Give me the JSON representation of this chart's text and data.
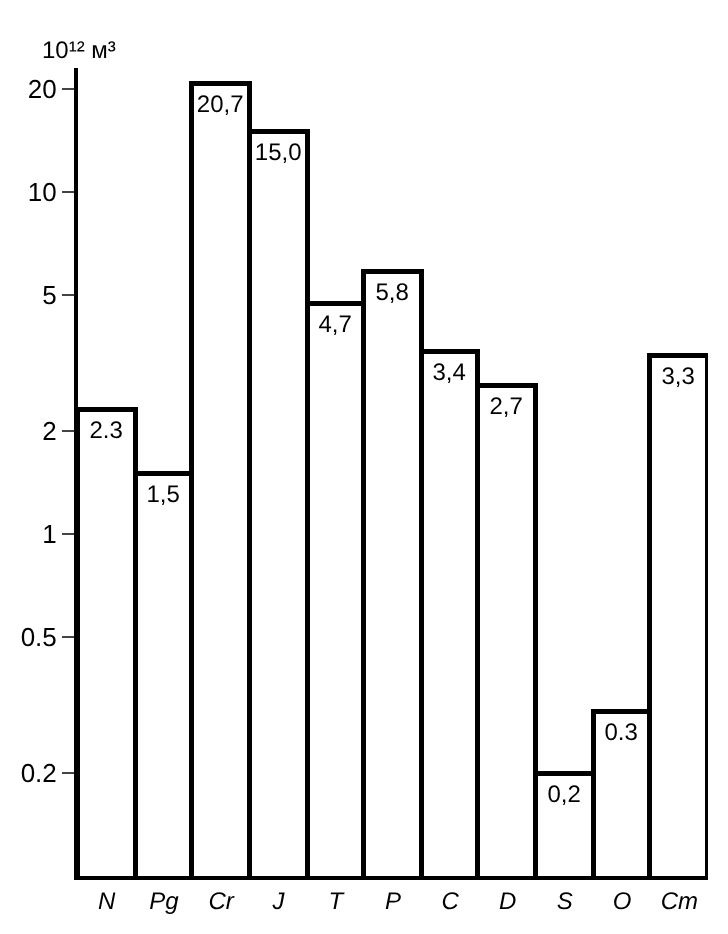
{
  "chart_data": {
    "type": "bar",
    "ylabel": "10¹² м³",
    "categories": [
      "N",
      "Pg",
      "Cr",
      "J",
      "T",
      "P",
      "C",
      "D",
      "S",
      "O",
      "Cm"
    ],
    "values": [
      2.3,
      1.5,
      20.7,
      15.0,
      4.7,
      5.8,
      3.4,
      2.7,
      0.2,
      0.3,
      3.3
    ],
    "value_labels": [
      "2.3",
      "1,5",
      "20,7",
      "15,0",
      "4,7",
      "5,8",
      "3,4",
      "2,7",
      "0,2",
      "0.3",
      "3,3"
    ],
    "color": "#ffffff",
    "log": true,
    "ylim": [
      0.1,
      23
    ],
    "yticks": [
      0.2,
      0.5,
      1,
      2,
      5,
      10,
      20
    ]
  }
}
